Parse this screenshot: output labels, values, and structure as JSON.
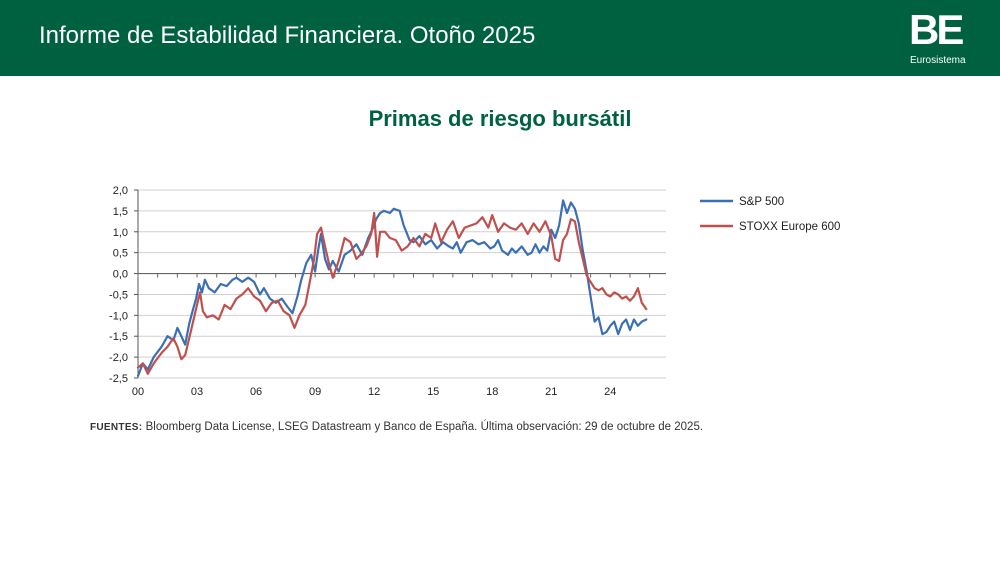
{
  "header": {
    "title": "Informe de Estabilidad Financiera. Otoño 2025",
    "logo_mark": "BE",
    "logo_sub": "Eurosistema",
    "background_color": "#006140"
  },
  "source": {
    "label": "FUENTES:",
    "text": "Bloomberg Data License, LSEG Datastream y Banco de España. Última observación: 29 de octubre de 2025."
  },
  "chart_data": {
    "type": "line",
    "title": "Primas de riesgo bursátil",
    "xlabel": "",
    "ylabel": "",
    "xlim": [
      2000,
      2026.83
    ],
    "ylim": [
      -2.5,
      2.0
    ],
    "yticks": [
      2.0,
      1.5,
      1.0,
      0.5,
      0.0,
      -0.5,
      -1.0,
      -1.5,
      -2.0,
      -2.5
    ],
    "ytick_labels": [
      "2,0",
      "1,5",
      "1,0",
      "0,5",
      "0,0",
      "-0,5",
      "-1,0",
      "-1,5",
      "-2,0",
      "-2,5"
    ],
    "xtick_positions": [
      2000,
      2003,
      2006,
      2009,
      2012,
      2015,
      2018,
      2021,
      2024
    ],
    "xtick_labels": [
      "00",
      "03",
      "06",
      "09",
      "12",
      "15",
      "18",
      "21",
      "24"
    ],
    "grid": true,
    "legend_position": "right",
    "series": [
      {
        "name": "S&P 500",
        "color": "#3A6FB5",
        "x": [
          2000.0,
          2000.25,
          2000.5,
          2000.8,
          2001.2,
          2001.5,
          2001.8,
          2002.0,
          2002.2,
          2002.4,
          2002.6,
          2002.8,
          2002.95,
          2003.1,
          2003.25,
          2003.4,
          2003.6,
          2003.9,
          2004.2,
          2004.5,
          2004.8,
          2005.0,
          2005.3,
          2005.6,
          2005.9,
          2006.2,
          2006.4,
          2006.7,
          2007.0,
          2007.3,
          2007.6,
          2007.85,
          2008.1,
          2008.3,
          2008.55,
          2008.8,
          2009.0,
          2009.15,
          2009.3,
          2009.5,
          2009.7,
          2009.9,
          2010.2,
          2010.5,
          2010.8,
          2011.1,
          2011.4,
          2011.7,
          2011.9,
          2012.1,
          2012.3,
          2012.5,
          2012.8,
          2013.0,
          2013.3,
          2013.5,
          2013.8,
          2014.0,
          2014.3,
          2014.6,
          2014.9,
          2015.2,
          2015.5,
          2015.8,
          2016.0,
          2016.2,
          2016.4,
          2016.7,
          2017.0,
          2017.3,
          2017.6,
          2017.9,
          2018.1,
          2018.3,
          2018.5,
          2018.8,
          2019.0,
          2019.2,
          2019.5,
          2019.8,
          2020.0,
          2020.2,
          2020.4,
          2020.6,
          2020.8,
          2021.0,
          2021.2,
          2021.4,
          2021.6,
          2021.8,
          2022.0,
          2022.2,
          2022.4,
          2022.6,
          2022.8,
          2023.0,
          2023.2,
          2023.4,
          2023.6,
          2023.8,
          2024.0,
          2024.2,
          2024.4,
          2024.6,
          2024.8,
          2025.0,
          2025.2,
          2025.4,
          2025.6,
          2025.83
        ],
        "values": [
          -2.45,
          -2.15,
          -2.3,
          -2.0,
          -1.75,
          -1.5,
          -1.6,
          -1.3,
          -1.5,
          -1.7,
          -1.2,
          -0.85,
          -0.6,
          -0.25,
          -0.45,
          -0.15,
          -0.35,
          -0.45,
          -0.25,
          -0.3,
          -0.15,
          -0.1,
          -0.2,
          -0.1,
          -0.2,
          -0.5,
          -0.35,
          -0.6,
          -0.7,
          -0.6,
          -0.8,
          -0.95,
          -0.55,
          -0.15,
          0.25,
          0.45,
          0.05,
          0.55,
          0.95,
          0.35,
          0.1,
          0.3,
          0.05,
          0.45,
          0.55,
          0.7,
          0.45,
          0.85,
          1.05,
          1.3,
          1.45,
          1.5,
          1.45,
          1.55,
          1.5,
          1.15,
          0.8,
          0.75,
          0.9,
          0.7,
          0.8,
          0.6,
          0.75,
          0.65,
          0.6,
          0.75,
          0.5,
          0.75,
          0.8,
          0.7,
          0.75,
          0.6,
          0.65,
          0.8,
          0.55,
          0.45,
          0.6,
          0.5,
          0.65,
          0.45,
          0.5,
          0.7,
          0.5,
          0.65,
          0.55,
          1.05,
          0.85,
          1.15,
          1.75,
          1.45,
          1.7,
          1.55,
          1.2,
          0.55,
          0.05,
          -0.55,
          -1.15,
          -1.05,
          -1.45,
          -1.4,
          -1.25,
          -1.15,
          -1.45,
          -1.2,
          -1.1,
          -1.35,
          -1.1,
          -1.25,
          -1.15,
          -1.1
        ]
      },
      {
        "name": "STOXX Europe 600",
        "color": "#C0504D",
        "x": [
          2000.0,
          2000.25,
          2000.5,
          2000.8,
          2001.2,
          2001.5,
          2001.8,
          2002.0,
          2002.2,
          2002.4,
          2002.6,
          2002.8,
          2003.0,
          2003.15,
          2003.3,
          2003.5,
          2003.8,
          2004.1,
          2004.4,
          2004.7,
          2005.0,
          2005.3,
          2005.6,
          2005.9,
          2006.2,
          2006.5,
          2006.8,
          2007.1,
          2007.4,
          2007.7,
          2007.95,
          2008.2,
          2008.5,
          2008.75,
          2008.95,
          2009.1,
          2009.3,
          2009.5,
          2009.7,
          2009.9,
          2010.2,
          2010.5,
          2010.8,
          2011.1,
          2011.3,
          2011.6,
          2011.85,
          2012.0,
          2012.15,
          2012.3,
          2012.55,
          2012.8,
          2013.1,
          2013.4,
          2013.7,
          2014.0,
          2014.3,
          2014.6,
          2014.9,
          2015.1,
          2015.4,
          2015.7,
          2016.0,
          2016.3,
          2016.6,
          2016.9,
          2017.2,
          2017.5,
          2017.8,
          2018.0,
          2018.3,
          2018.6,
          2018.9,
          2019.2,
          2019.5,
          2019.8,
          2020.1,
          2020.4,
          2020.7,
          2021.0,
          2021.2,
          2021.4,
          2021.6,
          2021.8,
          2022.0,
          2022.2,
          2022.4,
          2022.6,
          2022.8,
          2023.0,
          2023.2,
          2023.4,
          2023.6,
          2023.8,
          2024.0,
          2024.2,
          2024.4,
          2024.6,
          2024.8,
          2025.0,
          2025.2,
          2025.4,
          2025.6,
          2025.83
        ],
        "values": [
          -2.25,
          -2.15,
          -2.4,
          -2.15,
          -1.9,
          -1.75,
          -1.55,
          -1.75,
          -2.05,
          -1.95,
          -1.55,
          -1.15,
          -0.75,
          -0.45,
          -0.9,
          -1.05,
          -1.0,
          -1.1,
          -0.75,
          -0.85,
          -0.6,
          -0.5,
          -0.35,
          -0.55,
          -0.65,
          -0.9,
          -0.7,
          -0.65,
          -0.9,
          -1.0,
          -1.3,
          -1.0,
          -0.75,
          -0.15,
          0.35,
          0.95,
          1.1,
          0.65,
          0.25,
          -0.1,
          0.3,
          0.85,
          0.75,
          0.35,
          0.45,
          0.65,
          0.95,
          1.45,
          0.4,
          1.0,
          1.0,
          0.85,
          0.8,
          0.55,
          0.65,
          0.85,
          0.65,
          0.95,
          0.85,
          1.2,
          0.75,
          1.05,
          1.25,
          0.85,
          1.1,
          1.15,
          1.2,
          1.35,
          1.1,
          1.4,
          1.0,
          1.2,
          1.1,
          1.05,
          1.2,
          0.95,
          1.2,
          1.0,
          1.25,
          0.9,
          0.35,
          0.3,
          0.8,
          0.95,
          1.3,
          1.25,
          0.75,
          0.35,
          -0.05,
          -0.2,
          -0.35,
          -0.4,
          -0.35,
          -0.5,
          -0.55,
          -0.45,
          -0.5,
          -0.6,
          -0.55,
          -0.65,
          -0.55,
          -0.35,
          -0.7,
          -0.85
        ]
      }
    ]
  }
}
